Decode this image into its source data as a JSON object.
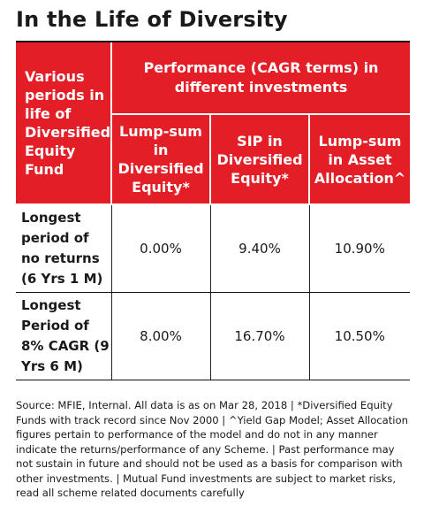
{
  "title": "In the Life of Diversity",
  "table": {
    "corner_header": "Various periods in life of Diversified Equity Fund",
    "group_header": "Performance (CAGR terms) in different investments",
    "columns": [
      "Lump-sum in Diversified Equity*",
      "SIP in Diversified Equity*",
      "Lump-sum in Asset Allocation^"
    ],
    "rows": [
      {
        "label": "Longest period of no returns (6 Yrs 1 M)",
        "values": [
          "0.00%",
          "9.40%",
          "10.90%"
        ]
      },
      {
        "label": "Longest Period of 8% CAGR (9 Yrs 6 M)",
        "values": [
          "8.00%",
          "16.70%",
          "10.50%"
        ]
      }
    ]
  },
  "source": "Source: MFIE, Internal. All data is as on Mar 28, 2018 | *Diversified Equity Funds with track record since Nov 2000 | ^Yield Gap Model; Asset Allocation figures pertain to performance of the model and do not in any manner indicate the returns/performance of any Scheme. | Past performance may not sustain in future and should not be used as a basis for comparison with other investments. | Mutual Fund investments are subject to market risks, read all scheme related documents carefully",
  "colors": {
    "header_red": "#e31e26",
    "text": "#1a1a1a"
  }
}
